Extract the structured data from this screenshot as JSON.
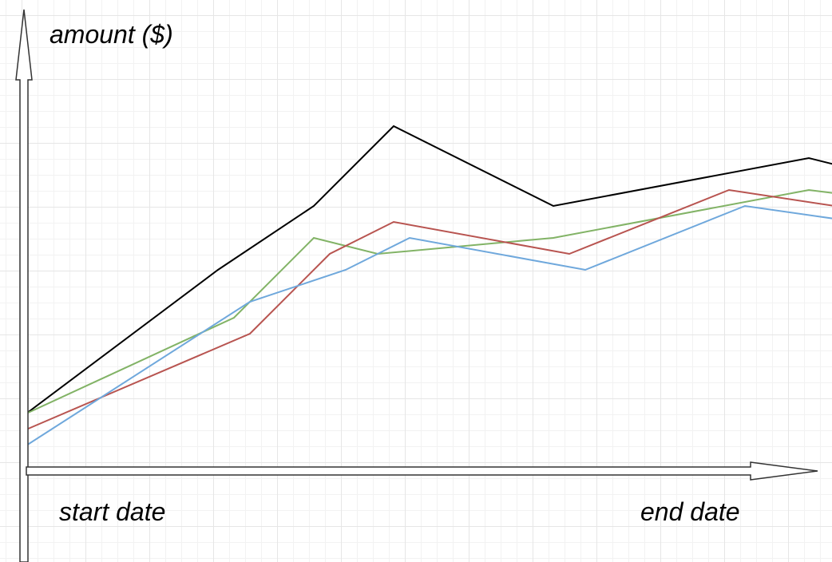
{
  "chart_data": {
    "type": "line",
    "title": "",
    "ylabel": "amount ($)",
    "xlabel_start": "start date",
    "xlabel_end": "end date",
    "x": [
      0,
      1,
      2,
      3,
      4,
      5,
      6,
      7,
      8,
      9,
      10,
      11,
      12,
      13,
      14,
      15,
      16,
      17,
      18,
      19,
      20,
      21,
      22,
      23,
      24,
      25
    ],
    "xlim": [
      0,
      25
    ],
    "ylim": [
      0,
      14
    ],
    "grid": true,
    "legend": "none",
    "series": [
      {
        "color": "#000000",
        "points": [
          [
            0,
            1.8
          ],
          [
            6,
            6.3
          ],
          [
            9,
            8.3
          ],
          [
            11.5,
            10.8
          ],
          [
            16.5,
            8.3
          ],
          [
            24.5,
            9.8
          ],
          [
            25.3,
            9.6
          ]
        ]
      },
      {
        "color": "#82b366",
        "points": [
          [
            0,
            1.8
          ],
          [
            6.5,
            4.8
          ],
          [
            9,
            7.3
          ],
          [
            11,
            6.8
          ],
          [
            16.5,
            7.3
          ],
          [
            24.5,
            8.8
          ],
          [
            25.3,
            8.7
          ]
        ]
      },
      {
        "color": "#b85450",
        "points": [
          [
            0,
            1.3
          ],
          [
            7,
            4.3
          ],
          [
            9.5,
            6.8
          ],
          [
            11.5,
            7.8
          ],
          [
            17,
            6.8
          ],
          [
            22,
            8.8
          ],
          [
            25.3,
            8.3
          ]
        ]
      },
      {
        "color": "#6fa8dc",
        "points": [
          [
            0,
            0.8
          ],
          [
            7,
            5.3
          ],
          [
            10,
            6.3
          ],
          [
            12,
            7.3
          ],
          [
            17.5,
            6.3
          ],
          [
            22.5,
            8.3
          ],
          [
            25.3,
            7.9
          ]
        ]
      }
    ]
  }
}
